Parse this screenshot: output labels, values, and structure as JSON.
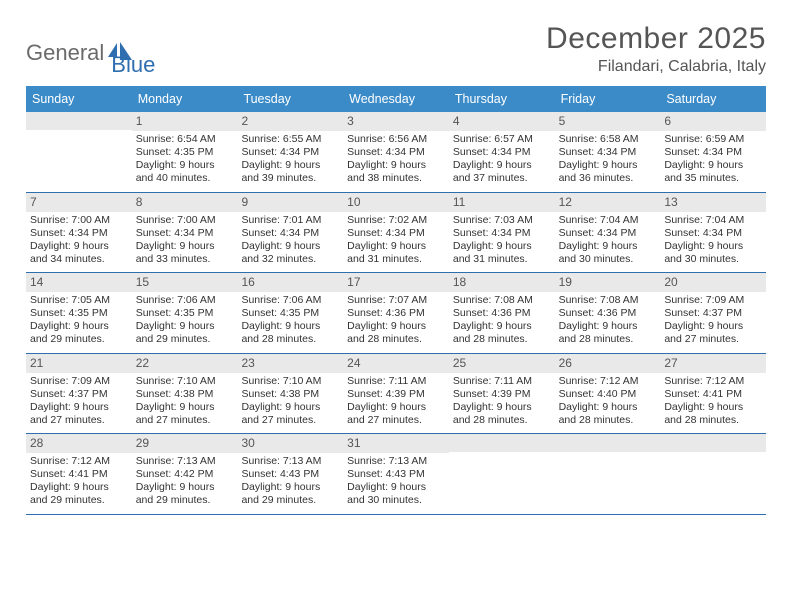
{
  "logo": {
    "text1": "General",
    "text2": "Blue"
  },
  "header": {
    "title": "December 2025",
    "location": "Filandari, Calabria, Italy"
  },
  "colors": {
    "header_bar": "#3b8bc9",
    "band": "#e9e9e9",
    "rule": "#2f6fb0",
    "text": "#333333",
    "muted": "#555555"
  },
  "day_names": [
    "Sunday",
    "Monday",
    "Tuesday",
    "Wednesday",
    "Thursday",
    "Friday",
    "Saturday"
  ],
  "weeks": [
    [
      null,
      {
        "n": "1",
        "sr": "Sunrise: 6:54 AM",
        "ss": "Sunset: 4:35 PM",
        "d1": "Daylight: 9 hours",
        "d2": "and 40 minutes."
      },
      {
        "n": "2",
        "sr": "Sunrise: 6:55 AM",
        "ss": "Sunset: 4:34 PM",
        "d1": "Daylight: 9 hours",
        "d2": "and 39 minutes."
      },
      {
        "n": "3",
        "sr": "Sunrise: 6:56 AM",
        "ss": "Sunset: 4:34 PM",
        "d1": "Daylight: 9 hours",
        "d2": "and 38 minutes."
      },
      {
        "n": "4",
        "sr": "Sunrise: 6:57 AM",
        "ss": "Sunset: 4:34 PM",
        "d1": "Daylight: 9 hours",
        "d2": "and 37 minutes."
      },
      {
        "n": "5",
        "sr": "Sunrise: 6:58 AM",
        "ss": "Sunset: 4:34 PM",
        "d1": "Daylight: 9 hours",
        "d2": "and 36 minutes."
      },
      {
        "n": "6",
        "sr": "Sunrise: 6:59 AM",
        "ss": "Sunset: 4:34 PM",
        "d1": "Daylight: 9 hours",
        "d2": "and 35 minutes."
      }
    ],
    [
      {
        "n": "7",
        "sr": "Sunrise: 7:00 AM",
        "ss": "Sunset: 4:34 PM",
        "d1": "Daylight: 9 hours",
        "d2": "and 34 minutes."
      },
      {
        "n": "8",
        "sr": "Sunrise: 7:00 AM",
        "ss": "Sunset: 4:34 PM",
        "d1": "Daylight: 9 hours",
        "d2": "and 33 minutes."
      },
      {
        "n": "9",
        "sr": "Sunrise: 7:01 AM",
        "ss": "Sunset: 4:34 PM",
        "d1": "Daylight: 9 hours",
        "d2": "and 32 minutes."
      },
      {
        "n": "10",
        "sr": "Sunrise: 7:02 AM",
        "ss": "Sunset: 4:34 PM",
        "d1": "Daylight: 9 hours",
        "d2": "and 31 minutes."
      },
      {
        "n": "11",
        "sr": "Sunrise: 7:03 AM",
        "ss": "Sunset: 4:34 PM",
        "d1": "Daylight: 9 hours",
        "d2": "and 31 minutes."
      },
      {
        "n": "12",
        "sr": "Sunrise: 7:04 AM",
        "ss": "Sunset: 4:34 PM",
        "d1": "Daylight: 9 hours",
        "d2": "and 30 minutes."
      },
      {
        "n": "13",
        "sr": "Sunrise: 7:04 AM",
        "ss": "Sunset: 4:34 PM",
        "d1": "Daylight: 9 hours",
        "d2": "and 30 minutes."
      }
    ],
    [
      {
        "n": "14",
        "sr": "Sunrise: 7:05 AM",
        "ss": "Sunset: 4:35 PM",
        "d1": "Daylight: 9 hours",
        "d2": "and 29 minutes."
      },
      {
        "n": "15",
        "sr": "Sunrise: 7:06 AM",
        "ss": "Sunset: 4:35 PM",
        "d1": "Daylight: 9 hours",
        "d2": "and 29 minutes."
      },
      {
        "n": "16",
        "sr": "Sunrise: 7:06 AM",
        "ss": "Sunset: 4:35 PM",
        "d1": "Daylight: 9 hours",
        "d2": "and 28 minutes."
      },
      {
        "n": "17",
        "sr": "Sunrise: 7:07 AM",
        "ss": "Sunset: 4:36 PM",
        "d1": "Daylight: 9 hours",
        "d2": "and 28 minutes."
      },
      {
        "n": "18",
        "sr": "Sunrise: 7:08 AM",
        "ss": "Sunset: 4:36 PM",
        "d1": "Daylight: 9 hours",
        "d2": "and 28 minutes."
      },
      {
        "n": "19",
        "sr": "Sunrise: 7:08 AM",
        "ss": "Sunset: 4:36 PM",
        "d1": "Daylight: 9 hours",
        "d2": "and 28 minutes."
      },
      {
        "n": "20",
        "sr": "Sunrise: 7:09 AM",
        "ss": "Sunset: 4:37 PM",
        "d1": "Daylight: 9 hours",
        "d2": "and 27 minutes."
      }
    ],
    [
      {
        "n": "21",
        "sr": "Sunrise: 7:09 AM",
        "ss": "Sunset: 4:37 PM",
        "d1": "Daylight: 9 hours",
        "d2": "and 27 minutes."
      },
      {
        "n": "22",
        "sr": "Sunrise: 7:10 AM",
        "ss": "Sunset: 4:38 PM",
        "d1": "Daylight: 9 hours",
        "d2": "and 27 minutes."
      },
      {
        "n": "23",
        "sr": "Sunrise: 7:10 AM",
        "ss": "Sunset: 4:38 PM",
        "d1": "Daylight: 9 hours",
        "d2": "and 27 minutes."
      },
      {
        "n": "24",
        "sr": "Sunrise: 7:11 AM",
        "ss": "Sunset: 4:39 PM",
        "d1": "Daylight: 9 hours",
        "d2": "and 27 minutes."
      },
      {
        "n": "25",
        "sr": "Sunrise: 7:11 AM",
        "ss": "Sunset: 4:39 PM",
        "d1": "Daylight: 9 hours",
        "d2": "and 28 minutes."
      },
      {
        "n": "26",
        "sr": "Sunrise: 7:12 AM",
        "ss": "Sunset: 4:40 PM",
        "d1": "Daylight: 9 hours",
        "d2": "and 28 minutes."
      },
      {
        "n": "27",
        "sr": "Sunrise: 7:12 AM",
        "ss": "Sunset: 4:41 PM",
        "d1": "Daylight: 9 hours",
        "d2": "and 28 minutes."
      }
    ],
    [
      {
        "n": "28",
        "sr": "Sunrise: 7:12 AM",
        "ss": "Sunset: 4:41 PM",
        "d1": "Daylight: 9 hours",
        "d2": "and 29 minutes."
      },
      {
        "n": "29",
        "sr": "Sunrise: 7:13 AM",
        "ss": "Sunset: 4:42 PM",
        "d1": "Daylight: 9 hours",
        "d2": "and 29 minutes."
      },
      {
        "n": "30",
        "sr": "Sunrise: 7:13 AM",
        "ss": "Sunset: 4:43 PM",
        "d1": "Daylight: 9 hours",
        "d2": "and 29 minutes."
      },
      {
        "n": "31",
        "sr": "Sunrise: 7:13 AM",
        "ss": "Sunset: 4:43 PM",
        "d1": "Daylight: 9 hours",
        "d2": "and 30 minutes."
      },
      null,
      null,
      null
    ]
  ]
}
